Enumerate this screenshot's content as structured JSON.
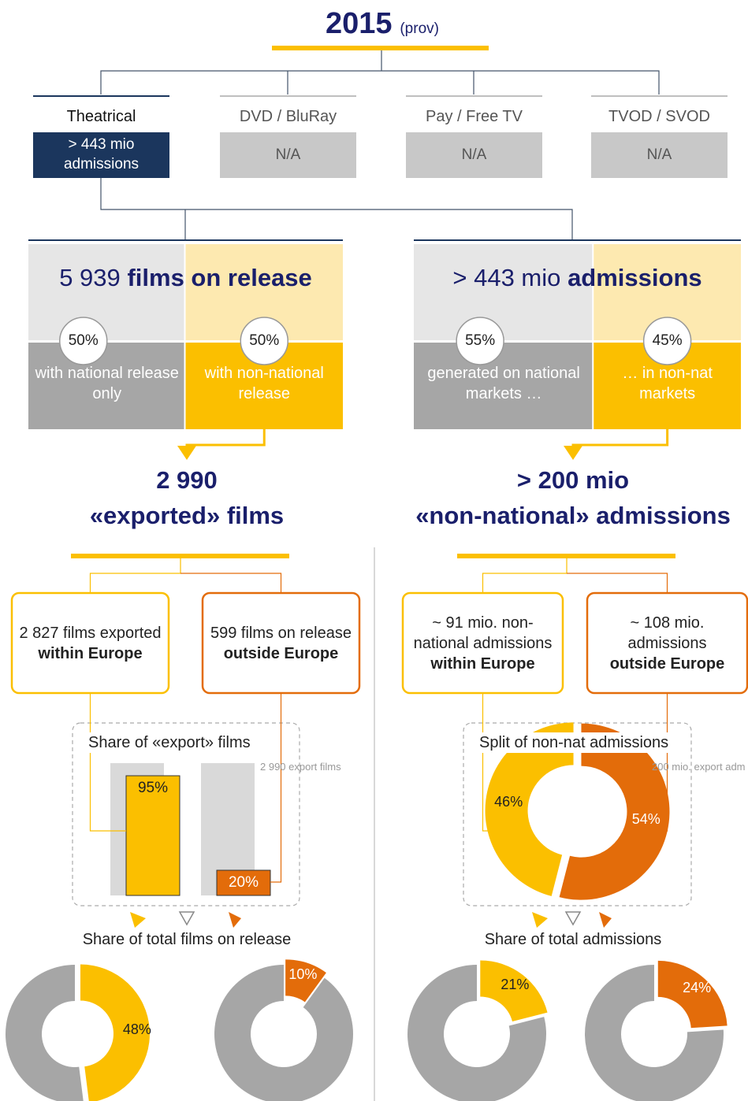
{
  "header": {
    "year": "2015",
    "note": "(prov)"
  },
  "channels": [
    {
      "name": "Theatrical",
      "box": "> 443 mio admissions"
    },
    {
      "name": "DVD / BluRay",
      "box": "N/A"
    },
    {
      "name": "Pay / Free TV",
      "box": "N/A"
    },
    {
      "name": "TVOD / SVOD",
      "box": "N/A"
    }
  ],
  "panels": [
    {
      "figure": "5 939",
      "label": "films on release",
      "parts": [
        {
          "value": 50,
          "label": "50%",
          "text": "with national release only"
        },
        {
          "value": 50,
          "label": "50%",
          "text": "with non-national release"
        }
      ],
      "result": {
        "figure": "2 990",
        "label": "«exported» films"
      },
      "destinations": [
        {
          "text": "2 827 films exported",
          "bold": "within Europe"
        },
        {
          "text": "599 films on release",
          "bold": "outside Europe"
        }
      ],
      "share": {
        "type": "bar",
        "title": "Share of «export» films",
        "note": "2 990 export films",
        "values": [
          {
            "value": 95,
            "label": "95%"
          },
          {
            "value": 20,
            "label": "20%"
          }
        ]
      },
      "total": {
        "title": "Share of total films on release",
        "values": [
          {
            "value": 48,
            "label": "48%"
          },
          {
            "value": 10,
            "label": "10%"
          }
        ]
      }
    },
    {
      "figure": "> 443 mio",
      "label": "admissions",
      "parts": [
        {
          "value": 55,
          "label": "55%",
          "text": "generated on national markets …"
        },
        {
          "value": 45,
          "label": "45%",
          "text": "… in non-nat markets"
        }
      ],
      "result": {
        "figure": "> 200 mio",
        "label": "«non-national» admissions"
      },
      "destinations": [
        {
          "text": "~ 91 mio. non-national admissions",
          "bold": "within Europe"
        },
        {
          "text": "~ 108 mio. admissions",
          "bold": "outside Europe"
        }
      ],
      "share": {
        "type": "donut",
        "title": "Split of non-nat admissions",
        "note": "200 mio. export adm",
        "values": [
          {
            "value": 46,
            "label": "46%"
          },
          {
            "value": 54,
            "label": "54%"
          }
        ]
      },
      "total": {
        "title": "Share of total admissions",
        "values": [
          {
            "value": 21,
            "label": "21%"
          },
          {
            "value": 24,
            "label": "24%"
          }
        ]
      }
    }
  ]
}
